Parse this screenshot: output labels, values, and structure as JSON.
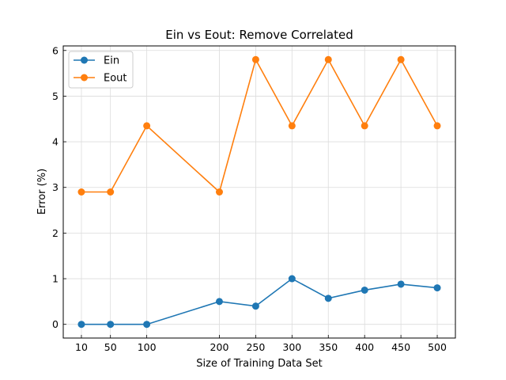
{
  "chart_data": {
    "type": "line",
    "title": "Ein vs Eout: Remove Correlated",
    "xlabel": "Size of Training Data Set",
    "ylabel": "Error (%)",
    "x": [
      10,
      50,
      100,
      200,
      250,
      300,
      350,
      400,
      450,
      500
    ],
    "xticks": [
      "10",
      "50",
      "100",
      "200",
      "250",
      "300",
      "350",
      "400",
      "450",
      "500"
    ],
    "yticks": [
      "0",
      "1",
      "2",
      "3",
      "4",
      "5",
      "6"
    ],
    "xlim": [
      -15,
      525
    ],
    "ylim": [
      -0.3,
      6.1
    ],
    "grid": true,
    "legend_position": "top-left",
    "series": [
      {
        "name": "Ein",
        "color": "#1f77b4",
        "values": [
          0.0,
          0.0,
          0.0,
          0.5,
          0.4,
          1.0,
          0.57,
          0.75,
          0.88,
          0.8
        ]
      },
      {
        "name": "Eout",
        "color": "#ff7f0e",
        "values": [
          2.9,
          2.9,
          4.35,
          2.9,
          5.8,
          4.35,
          5.8,
          4.35,
          5.8,
          4.35
        ]
      }
    ]
  }
}
